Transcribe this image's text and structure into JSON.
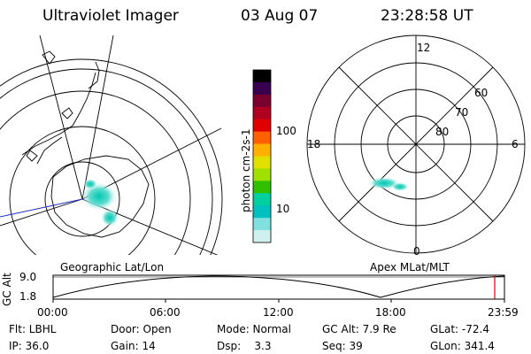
{
  "header": {
    "instrument": "Ultraviolet Imager",
    "date": "03 Aug 07",
    "time": "23:28:58 UT"
  },
  "colorbar": {
    "unit_label": "photon cm-2s-1",
    "ticks": [
      "100",
      "10"
    ],
    "colors": [
      "#000000",
      "#3a0050",
      "#7a0030",
      "#b00020",
      "#e00000",
      "#ff6000",
      "#ffb000",
      "#e0e000",
      "#a0e000",
      "#30c000",
      "#00d0a0",
      "#00c0c0",
      "#80e0e0",
      "#d0f0f0"
    ]
  },
  "geo_map": {
    "label": "Geographic Lat/Lon"
  },
  "apex_map": {
    "label": "Apex MLat/MLT",
    "lat_labels": [
      "60",
      "70",
      "80"
    ],
    "mlt_labels": {
      "top": "12",
      "left": "18",
      "right": "6",
      "bottom": "0"
    }
  },
  "timeline": {
    "ylabel": "GC Alt",
    "y_ticks": [
      "9.0",
      "1.8"
    ],
    "x_ticks": [
      "00:00",
      "06:00",
      "12:00",
      "18:00",
      "23:59"
    ],
    "marker_color": "#e00000"
  },
  "footer": {
    "row1": {
      "filter": "Flt: LBHL",
      "door": "Door: Open",
      "mode": "Mode: Normal",
      "gc_alt": "GC Alt: 7.9 Re",
      "glat": "GLat: -72.4"
    },
    "row2": {
      "ip": "IP: 36.0",
      "gain": "Gain: 14",
      "dsp": "Dsp:    3.3",
      "seq": "Seq: 39",
      "glon": "GLon: 341.4"
    }
  }
}
